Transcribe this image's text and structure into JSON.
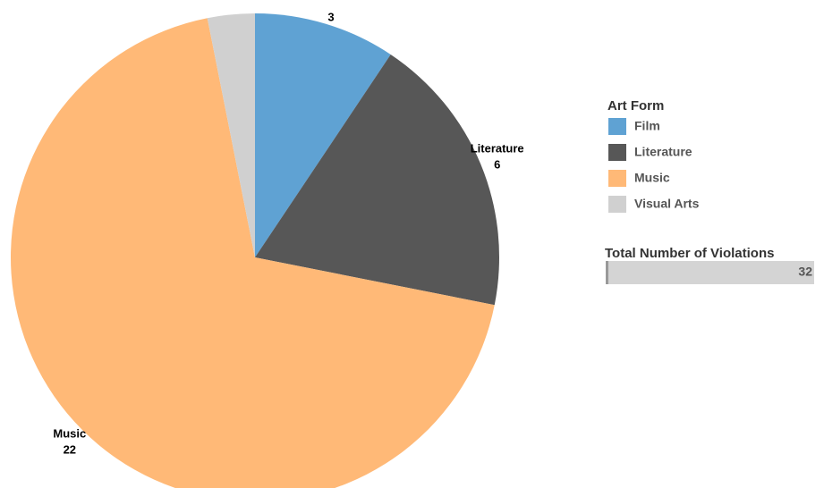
{
  "chart_data": {
    "type": "pie",
    "categories": [
      "Film",
      "Literature",
      "Music",
      "Visual Arts"
    ],
    "values": [
      3,
      6,
      22,
      1
    ],
    "colors": [
      "#5fa2d3",
      "#575757",
      "#ffb977",
      "#d0d0d0"
    ],
    "label_name_shown": [
      false,
      true,
      true,
      false
    ],
    "label_value_shown": [
      true,
      true,
      true,
      false
    ],
    "legend_title": "Art Form",
    "legend": "right",
    "total": {
      "title": "Total Number of Violations",
      "value": 32,
      "xlim": [
        0,
        32
      ],
      "color": "#d4d4d4"
    }
  }
}
